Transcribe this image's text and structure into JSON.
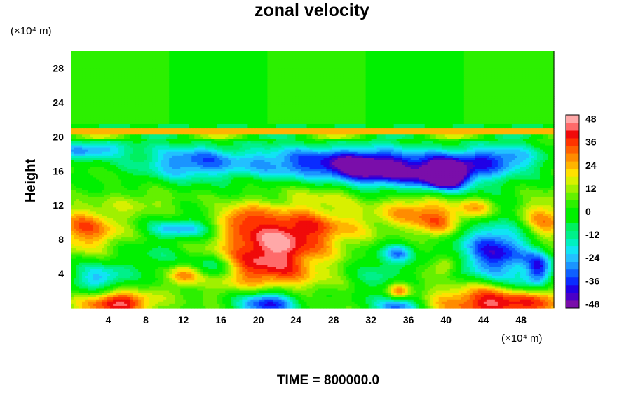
{
  "chart_data": {
    "type": "heatmap",
    "title": "zonal velocity",
    "ylabel": "Height",
    "xlabel": "",
    "x_unit_label": "(×10⁴ m)",
    "y_unit_label": "(×10⁴ m)",
    "footer": "TIME = 800000.0",
    "xlim": [
      0,
      51.5
    ],
    "ylim": [
      0,
      30
    ],
    "x_ticks": [
      4,
      8,
      12,
      16,
      20,
      24,
      28,
      32,
      36,
      40,
      44,
      48
    ],
    "y_ticks": [
      4,
      8,
      12,
      16,
      20,
      24,
      28
    ],
    "colorbar": {
      "min": -48,
      "max": 48,
      "step": 4,
      "ticks": [
        48,
        36,
        24,
        12,
        0,
        -12,
        -24,
        -36,
        -48
      ],
      "colors": [
        "#7a0eaa",
        "#4a00c8",
        "#2000e6",
        "#0a2cff",
        "#0e60ff",
        "#1a94ff",
        "#22c0ff",
        "#10e4f4",
        "#00f0c0",
        "#00f08a",
        "#00f060",
        "#00f000",
        "#00f000",
        "#2cf000",
        "#64f000",
        "#a0f000",
        "#d8f000",
        "#ffe000",
        "#ffb400",
        "#ff8c00",
        "#ff6000",
        "#ff3400",
        "#f00a0a",
        "#ff6a6a",
        "#ffa8a8"
      ]
    },
    "features": [
      {
        "x": 21,
        "y": 6,
        "sx": 4.2,
        "sy": 3.4,
        "value": 42
      },
      {
        "x": 26,
        "y": 9.5,
        "sx": 4.5,
        "sy": 1.8,
        "value": 22
      },
      {
        "x": 21,
        "y": 0.6,
        "sx": 2.4,
        "sy": 1.1,
        "value": -52
      },
      {
        "x": 35,
        "y": 0.3,
        "sx": 1.6,
        "sy": 0.8,
        "value": -38
      },
      {
        "x": 46,
        "y": 0.8,
        "sx": 5,
        "sy": 1.5,
        "value": 46
      },
      {
        "x": 5,
        "y": 0.6,
        "sx": 2.8,
        "sy": 1.0,
        "value": 42
      },
      {
        "x": 1.5,
        "y": 9.2,
        "sx": 3,
        "sy": 1.8,
        "value": 30
      },
      {
        "x": 50.5,
        "y": 10,
        "sx": 2,
        "sy": 2,
        "value": 28
      },
      {
        "x": 45.5,
        "y": 6.5,
        "sx": 3,
        "sy": 2.5,
        "value": -42
      },
      {
        "x": 37,
        "y": 11.5,
        "sx": 3,
        "sy": 1.5,
        "value": 26
      },
      {
        "x": 43,
        "y": 11.5,
        "sx": 1.5,
        "sy": 1,
        "value": 24
      },
      {
        "x": 39,
        "y": 9.5,
        "sx": 1.5,
        "sy": 1.2,
        "value": 20
      },
      {
        "x": 31,
        "y": 16.5,
        "sx": 3,
        "sy": 1.5,
        "value": -40
      },
      {
        "x": 38,
        "y": 16,
        "sx": 5,
        "sy": 1.8,
        "value": -44
      },
      {
        "x": 40,
        "y": 15.5,
        "sx": 1.5,
        "sy": 1,
        "value": -50
      },
      {
        "x": 13,
        "y": 17,
        "sx": 4,
        "sy": 1.5,
        "value": -34
      },
      {
        "x": 24,
        "y": 17,
        "sx": 4,
        "sy": 1.5,
        "value": -32
      },
      {
        "x": 46,
        "y": 17.5,
        "sx": 3,
        "sy": 1.2,
        "value": -28
      },
      {
        "x": 2,
        "y": 18.5,
        "sx": 3,
        "sy": 0.8,
        "value": -30
      },
      {
        "x": 12,
        "y": 9.3,
        "sx": 2.5,
        "sy": 0.8,
        "value": -30
      },
      {
        "x": 18,
        "y": 10.5,
        "sx": 1.5,
        "sy": 1,
        "value": 18
      },
      {
        "x": 12,
        "y": 3.8,
        "sx": 1.2,
        "sy": 0.9,
        "value": 28
      },
      {
        "x": 3,
        "y": 3.5,
        "sx": 2,
        "sy": 1.2,
        "value": -26
      },
      {
        "x": 15,
        "y": 5,
        "sx": 1.8,
        "sy": 1,
        "value": -22
      },
      {
        "x": 35,
        "y": 2,
        "sx": 0.9,
        "sy": 0.8,
        "value": 30
      },
      {
        "x": 35,
        "y": 6.5,
        "sx": 1.2,
        "sy": 0.8,
        "value": -26
      },
      {
        "x": 40,
        "y": 5,
        "sx": 1,
        "sy": 0.8,
        "value": 22
      },
      {
        "x": 48,
        "y": 2.5,
        "sx": 1.5,
        "sy": 1,
        "value": -20
      },
      {
        "x": 8,
        "y": 12.5,
        "sx": 2.5,
        "sy": 1,
        "value": 10
      },
      {
        "x": 28,
        "y": 13.5,
        "sx": 3,
        "sy": 1,
        "value": 12
      },
      {
        "x": 33,
        "y": 4,
        "sx": 2,
        "sy": 2,
        "value": -14
      },
      {
        "x": 9,
        "y": 6,
        "sx": 2.5,
        "sy": 1.5,
        "value": -10
      },
      {
        "x": 50,
        "y": 4.5,
        "sx": 1,
        "sy": 1.5,
        "value": -30
      }
    ]
  }
}
